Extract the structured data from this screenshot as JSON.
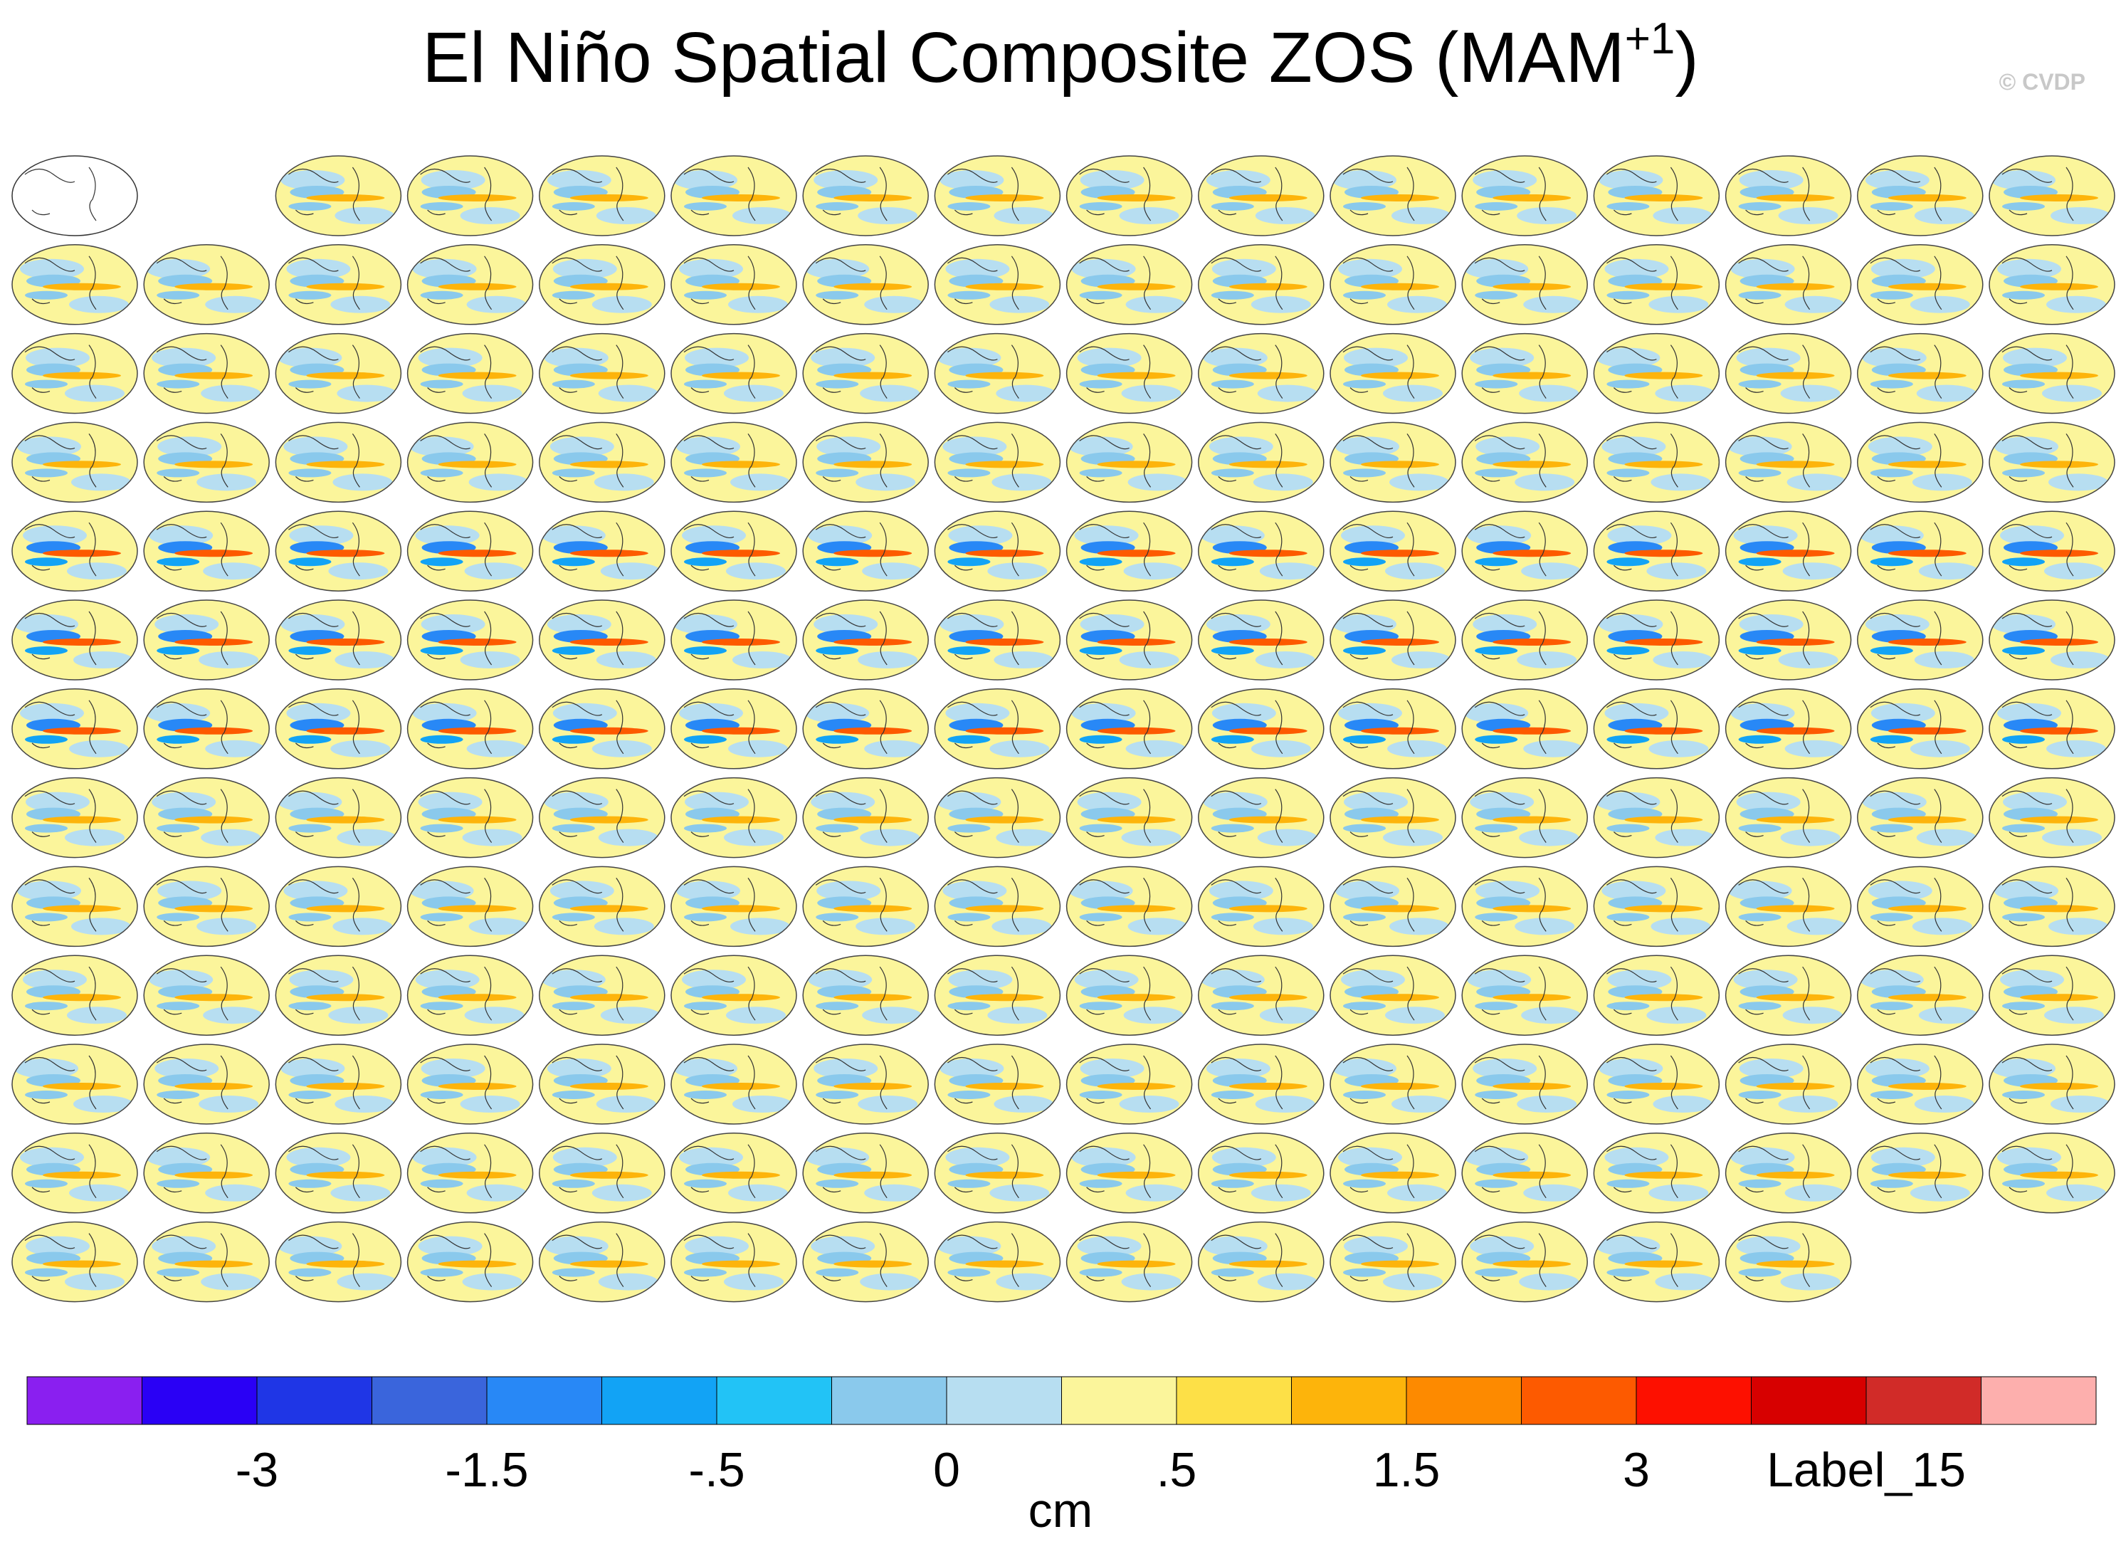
{
  "title": {
    "text": "El Niño Spatial Composite ZOS (MAM",
    "superscript": "+1",
    "close": ")"
  },
  "watermark": "© CVDP",
  "colorbar": {
    "colors": [
      "#8a1ff0",
      "#2a00f5",
      "#1f36e6",
      "#3a65dc",
      "#2888f6",
      "#12a3f5",
      "#22c3f6",
      "#8ac9ec",
      "#b7def1",
      "#fbf59b",
      "#fde047",
      "#fdb40b",
      "#fd8a00",
      "#fd5a00",
      "#fd1000",
      "#d70000",
      "#d12b28",
      "#fdafad"
    ],
    "labels": [
      "-3",
      "-1.5",
      "-.5",
      "0",
      ".5",
      "1.5",
      "3",
      "Label_15"
    ],
    "unit": "cm"
  }
}
